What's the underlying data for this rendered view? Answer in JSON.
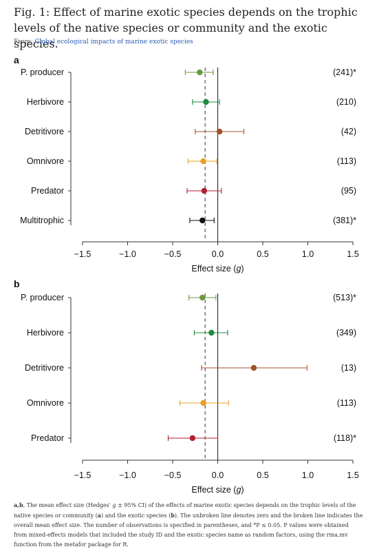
{
  "figure": {
    "title": "Fig. 1: Effect of marine exotic species depends on the trophic levels of the native species or community and the exotic species.",
    "from_label": "From:",
    "from_link": "Global ecological impacts of marine exotic species"
  },
  "caption": {
    "panels": "a,b",
    "t1": ", The mean effect size (Hedges' ",
    "g": "g",
    "t2": " ± 95% CI) of the effects of marine exotic species depends on the trophic levels of the native species or community (",
    "a": "a",
    "t3": ") and the exotic species (",
    "b": "b",
    "t4": "). The unbroken line denotes zero and the broken line indicates the overall mean effect size. The number of observations is specified in parentheses, and *P ≤ 0.05. P values were obtained from mixed-effects models that included the study ID and the exotic species name as random factors, using the rma.mv function from the metafor package for R."
  },
  "colors": {
    "producer": "#6a9a3f",
    "herbivore": "#1f8a3d",
    "detritivore": "#a0522d",
    "omnivore": "#e8a020",
    "predator": "#b22030",
    "multitrophic": "#111111",
    "axis": "#333333",
    "mean_line": "#333333"
  },
  "chart_data": [
    {
      "type": "scatter",
      "panel_label": "a",
      "xlabel": "Effect size",
      "xlabel_var": "g",
      "xlim": [
        -1.5,
        1.5
      ],
      "xticks": [
        "−1.5",
        "−1.0",
        "−0.5",
        "0.0",
        "0.5",
        "1.0",
        "1.5"
      ],
      "overall_mean": -0.14,
      "categories": [
        "P. producer",
        "Herbivore",
        "Detritivore",
        "Omnivore",
        "Predator",
        "Multitrophic"
      ],
      "series": [
        {
          "values": [
            -0.2,
            -0.13,
            0.02,
            -0.16,
            -0.15,
            -0.17
          ],
          "ci_low": [
            -0.36,
            -0.28,
            -0.25,
            -0.33,
            -0.34,
            -0.31
          ],
          "ci_high": [
            -0.05,
            0.02,
            0.29,
            -0.01,
            0.04,
            -0.04
          ],
          "colors": [
            "producer",
            "herbivore",
            "detritivore",
            "omnivore",
            "predator",
            "multitrophic"
          ]
        }
      ],
      "annotations": [
        "(241)*",
        "(210)",
        "(42)",
        "(113)",
        "(95)",
        "(381)*"
      ]
    },
    {
      "type": "scatter",
      "panel_label": "b",
      "xlabel": "Effect size",
      "xlabel_var": "g",
      "xlim": [
        -1.5,
        1.5
      ],
      "xticks": [
        "−1.5",
        "−1.0",
        "−0.5",
        "0.0",
        "0.5",
        "1.0",
        "1.5"
      ],
      "overall_mean": -0.14,
      "categories": [
        "P. producer",
        "Herbivore",
        "Detritivore",
        "Omnivore",
        "Predator"
      ],
      "series": [
        {
          "values": [
            -0.17,
            -0.07,
            0.4,
            -0.16,
            -0.28
          ],
          "ci_low": [
            -0.32,
            -0.26,
            -0.18,
            -0.42,
            -0.55
          ],
          "ci_high": [
            -0.02,
            0.11,
            0.99,
            0.12,
            0.0
          ],
          "colors": [
            "producer",
            "herbivore",
            "detritivore",
            "omnivore",
            "predator"
          ]
        }
      ],
      "annotations": [
        "(513)*",
        "(349)",
        "(13)",
        "(113)",
        "(118)*"
      ]
    }
  ]
}
